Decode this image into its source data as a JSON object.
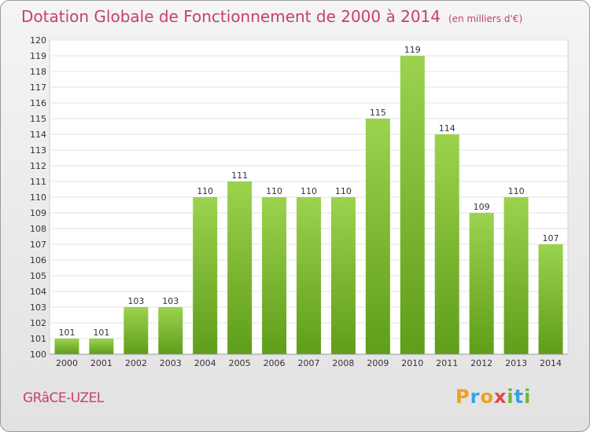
{
  "header": {
    "title": "Dotation Globale de Fonctionnement de 2000 à 2014",
    "subtitle": "(en milliers d'€)"
  },
  "footer": {
    "town": "GRâCE-UZEL",
    "logo": "Proxiti"
  },
  "colors": {
    "bar_top": "#9bd34e",
    "bar_bottom": "#5f9d1a",
    "title": "#c8406a"
  },
  "chart_data": {
    "type": "bar",
    "categories": [
      "2000",
      "2001",
      "2002",
      "2003",
      "2004",
      "2005",
      "2006",
      "2007",
      "2008",
      "2009",
      "2010",
      "2011",
      "2012",
      "2013",
      "2014"
    ],
    "values": [
      101,
      101,
      103,
      103,
      110,
      111,
      110,
      110,
      110,
      115,
      119,
      114,
      109,
      110,
      107
    ],
    "title": "Dotation Globale de Fonctionnement de 2000 à 2014",
    "subtitle": "(en milliers d'€)",
    "ylim": [
      100,
      120
    ],
    "yticks": [
      100,
      101,
      102,
      103,
      104,
      105,
      106,
      107,
      108,
      109,
      110,
      111,
      112,
      113,
      114,
      115,
      116,
      117,
      118,
      119,
      120
    ],
    "grid": true
  }
}
